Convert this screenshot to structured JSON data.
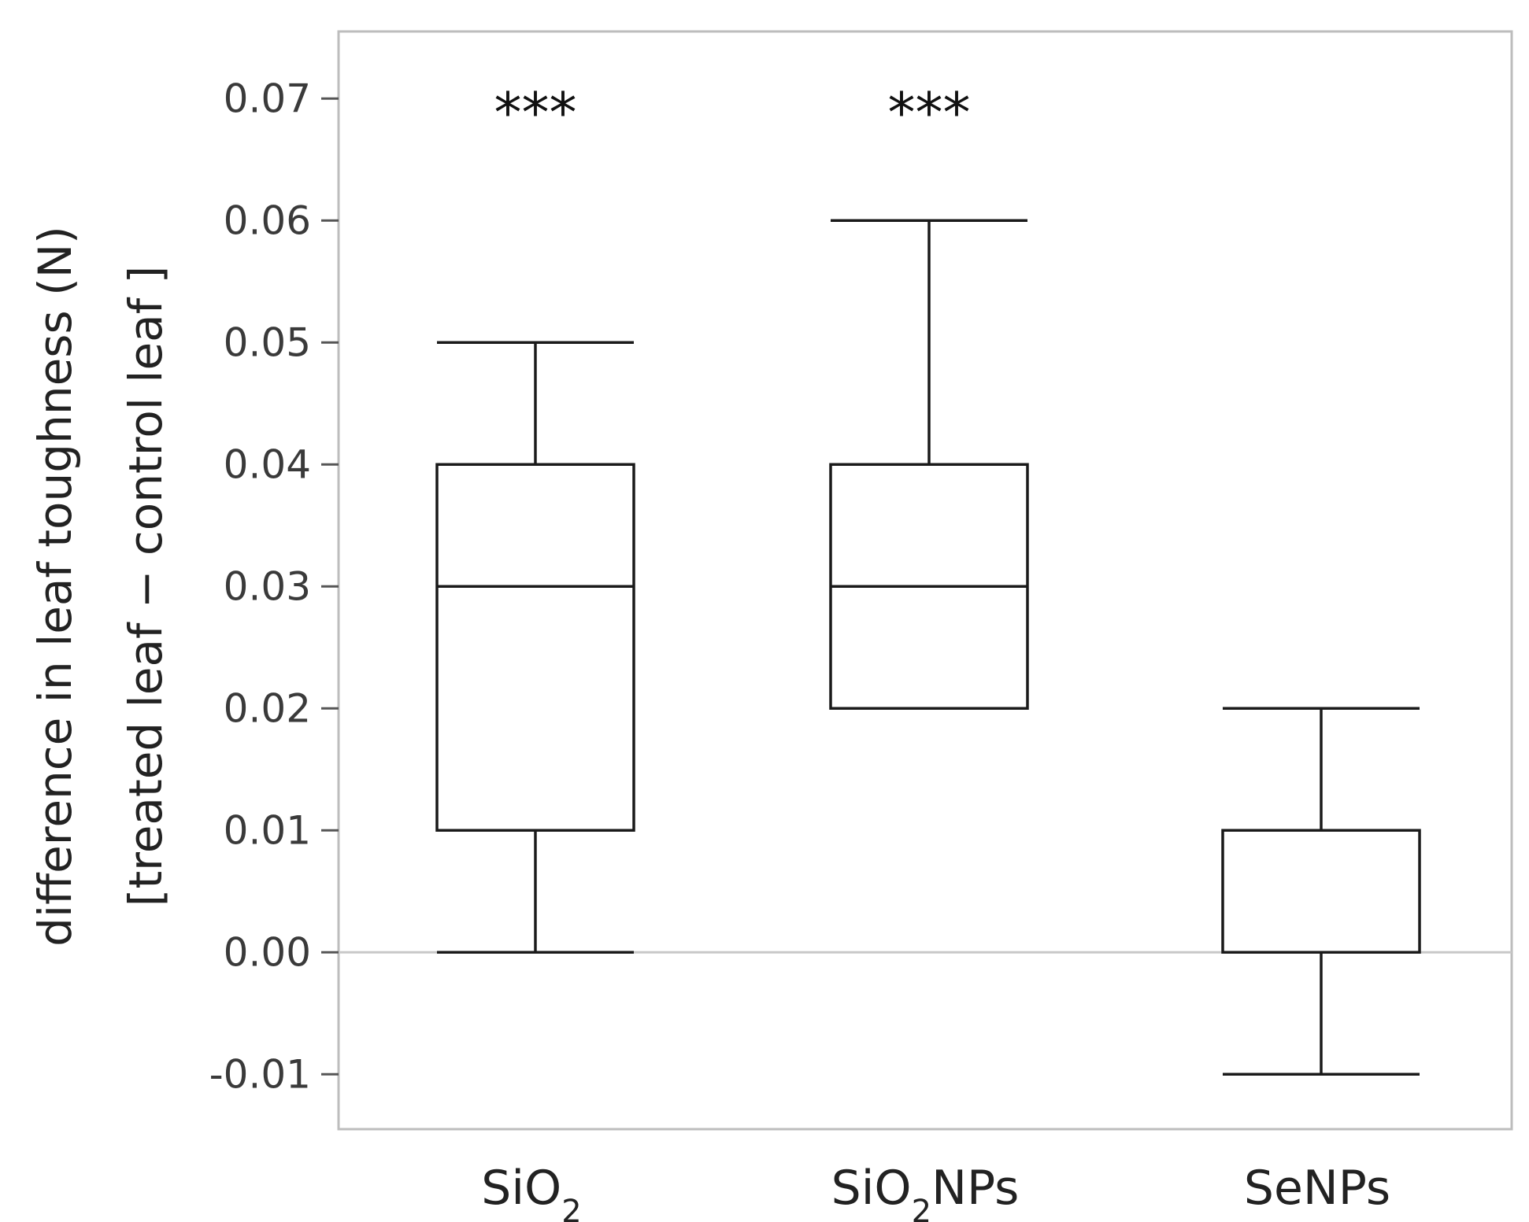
{
  "chart_data": {
    "type": "box",
    "title": "",
    "ylabel_line1": "difference in leaf toughness (N)",
    "ylabel_line2": "[treated leaf − control leaf ]",
    "xlabel": "",
    "ylim": [
      -0.0145,
      0.0755
    ],
    "yticks": [
      -0.01,
      0.0,
      0.01,
      0.02,
      0.03,
      0.04,
      0.05,
      0.06,
      0.07
    ],
    "ytick_labels": [
      "-0.01",
      "0.00",
      "0.01",
      "0.02",
      "0.03",
      "0.04",
      "0.05",
      "0.06",
      "0.07"
    ],
    "reference_line": 0.0,
    "categories": [
      {
        "base": "SiO",
        "sub": "2",
        "suffix": ""
      },
      {
        "base": "SiO",
        "sub": "2",
        "suffix": "NPs"
      },
      {
        "base": "SeNPs",
        "sub": "",
        "suffix": ""
      }
    ],
    "boxes": [
      {
        "min": 0.0,
        "q1": 0.01,
        "median": 0.03,
        "q3": 0.04,
        "max": 0.05,
        "annotation": "***"
      },
      {
        "min": 0.02,
        "q1": 0.02,
        "median": 0.03,
        "q3": 0.04,
        "max": 0.06,
        "annotation": "***"
      },
      {
        "min": -0.01,
        "q1": 0.0,
        "median": 0.0,
        "q3": 0.01,
        "max": 0.02,
        "annotation": ""
      }
    ],
    "colors": {
      "frame": "#bdbdbd",
      "box": "#1a1a1a",
      "reference": "#c8c8c8",
      "tick": "#555555"
    }
  }
}
